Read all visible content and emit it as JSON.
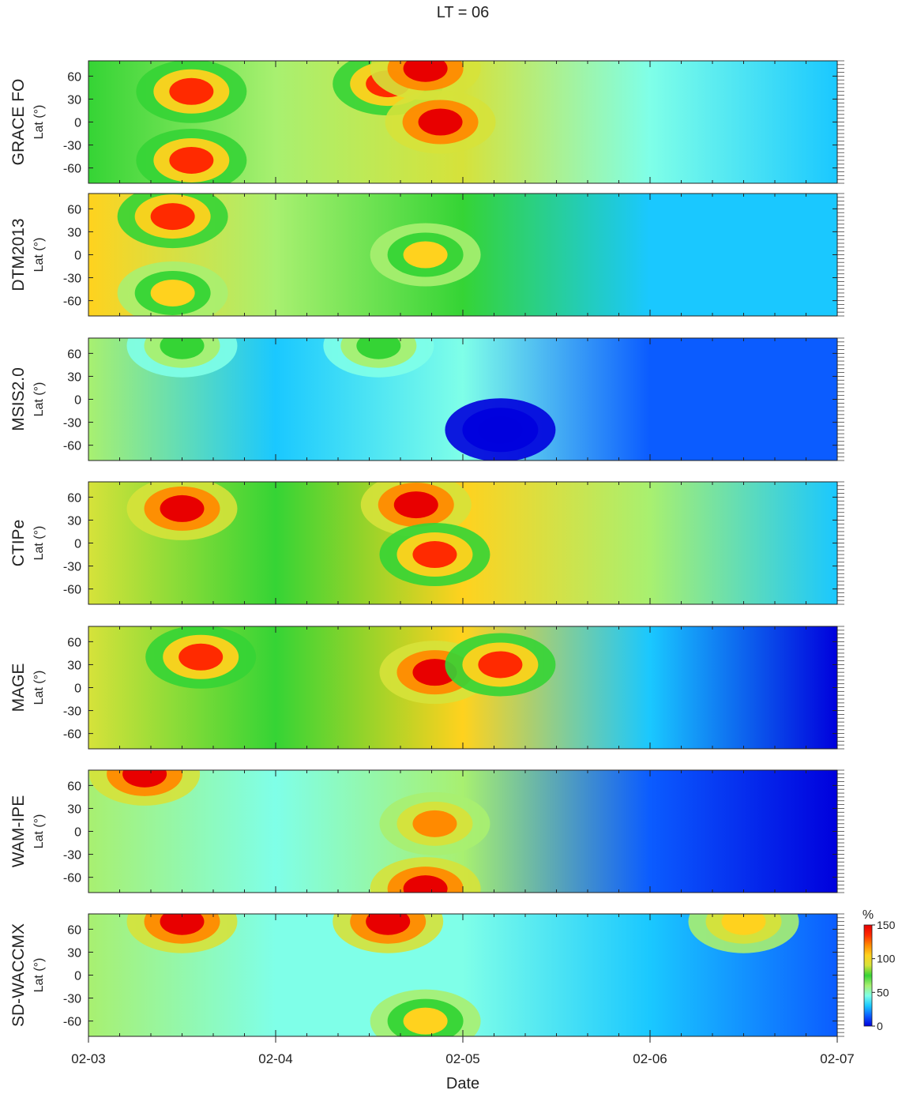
{
  "chart_data": {
    "type": "heatmap",
    "title": "LT = 06",
    "xlabel": "Date",
    "x_ticks": [
      "02-03",
      "02-04",
      "02-05",
      "02-06",
      "02-07"
    ],
    "x_range_days": [
      0,
      4
    ],
    "ylabel": "Lat (°)",
    "y_ticks": [
      60,
      30,
      0,
      -30,
      -60
    ],
    "ylim": [
      -80,
      80
    ],
    "colorbar": {
      "unit": "%",
      "ticks": [
        0,
        50,
        100,
        150
      ],
      "range": [
        0,
        150
      ],
      "colormap": "jet",
      "colors": [
        "#0000dd",
        "#0b5cff",
        "#1ac8ff",
        "#7fffe8",
        "#a8f070",
        "#35d435",
        "#d6e23a",
        "#ffd21e",
        "#ff8a00",
        "#ff2a00",
        "#e80000"
      ]
    },
    "panels": [
      {
        "name": "GRACE FO",
        "daily_mean_pct": [
          78,
          62,
          95,
          40,
          30
        ],
        "features": [
          {
            "lat": 40,
            "date_day": 0.55,
            "value_pct": 140
          },
          {
            "lat": -50,
            "date_day": 0.55,
            "value_pct": 140
          },
          {
            "lat": 50,
            "date_day": 1.6,
            "value_pct": 130
          },
          {
            "lat": 0,
            "date_day": 1.88,
            "value_pct": 150
          },
          {
            "lat": 70,
            "date_day": 1.8,
            "value_pct": 150
          }
        ]
      },
      {
        "name": "DTM2013",
        "daily_mean_pct": [
          100,
          65,
          75,
          30,
          25
        ],
        "features": [
          {
            "lat": 50,
            "date_day": 0.45,
            "value_pct": 130
          },
          {
            "lat": -50,
            "date_day": 0.45,
            "value_pct": 100
          },
          {
            "lat": 0,
            "date_day": 1.8,
            "value_pct": 100
          }
        ]
      },
      {
        "name": "MSIS2.0",
        "daily_mean_pct": [
          55,
          35,
          40,
          12,
          8
        ],
        "features": [
          {
            "lat": 70,
            "date_day": 0.5,
            "value_pct": 80
          },
          {
            "lat": 70,
            "date_day": 1.55,
            "value_pct": 70
          },
          {
            "lat": -40,
            "date_day": 2.2,
            "value_pct": 5
          }
        ]
      },
      {
        "name": "CTIPe",
        "daily_mean_pct": [
          95,
          70,
          110,
          60,
          30
        ],
        "features": [
          {
            "lat": 45,
            "date_day": 0.5,
            "value_pct": 150
          },
          {
            "lat": 50,
            "date_day": 1.75,
            "value_pct": 150
          },
          {
            "lat": -15,
            "date_day": 1.85,
            "value_pct": 140
          }
        ]
      },
      {
        "name": "MAGE",
        "daily_mean_pct": [
          85,
          70,
          110,
          25,
          5
        ],
        "features": [
          {
            "lat": 40,
            "date_day": 0.6,
            "value_pct": 140
          },
          {
            "lat": 20,
            "date_day": 1.85,
            "value_pct": 150
          },
          {
            "lat": 30,
            "date_day": 2.2,
            "value_pct": 140
          }
        ]
      },
      {
        "name": "WAM-IPE",
        "daily_mean_pct": [
          65,
          40,
          60,
          20,
          5
        ],
        "features": [
          {
            "lat": 75,
            "date_day": 0.3,
            "value_pct": 150
          },
          {
            "lat": 10,
            "date_day": 1.85,
            "value_pct": 120
          },
          {
            "lat": -75,
            "date_day": 1.8,
            "value_pct": 150
          }
        ]
      },
      {
        "name": "SD-WACCMX",
        "daily_mean_pct": [
          55,
          40,
          50,
          25,
          20
        ],
        "features": [
          {
            "lat": 70,
            "date_day": 0.5,
            "value_pct": 150
          },
          {
            "lat": 70,
            "date_day": 1.6,
            "value_pct": 150
          },
          {
            "lat": 70,
            "date_day": 3.5,
            "value_pct": 110
          },
          {
            "lat": -60,
            "date_day": 1.8,
            "value_pct": 100
          }
        ]
      }
    ]
  }
}
